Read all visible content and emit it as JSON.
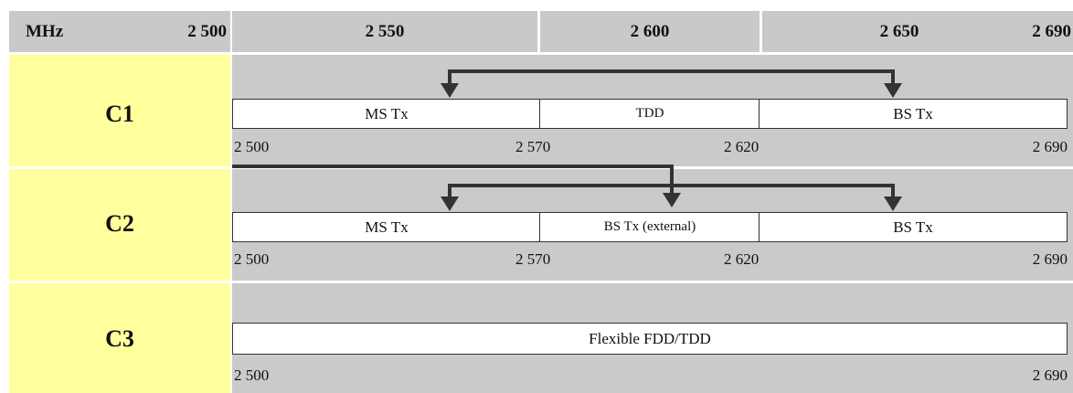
{
  "header": {
    "unit": "MHz",
    "ticks": [
      "2 500",
      "2 550",
      "2 600",
      "2 650",
      "2 690"
    ]
  },
  "rows": [
    {
      "label": "C1",
      "segments": [
        "MS Tx",
        "TDD",
        "BS Tx"
      ],
      "freqs": [
        "2 500",
        "2 570",
        "2 620",
        "2 690"
      ]
    },
    {
      "label": "C2",
      "segments": [
        "MS Tx",
        "BS Tx (external)",
        "BS Tx"
      ],
      "freqs": [
        "2 500",
        "2 570",
        "2 620",
        "2 690"
      ]
    },
    {
      "label": "C3",
      "segments": [
        "Flexible FDD/TDD"
      ],
      "freqs": [
        "2 500",
        "2 690"
      ]
    }
  ],
  "colors": {
    "header_bg": "#c9c9c9",
    "label_bg": "#ffff9e",
    "band_bg": "#cacaca",
    "arrow": "#333333"
  }
}
